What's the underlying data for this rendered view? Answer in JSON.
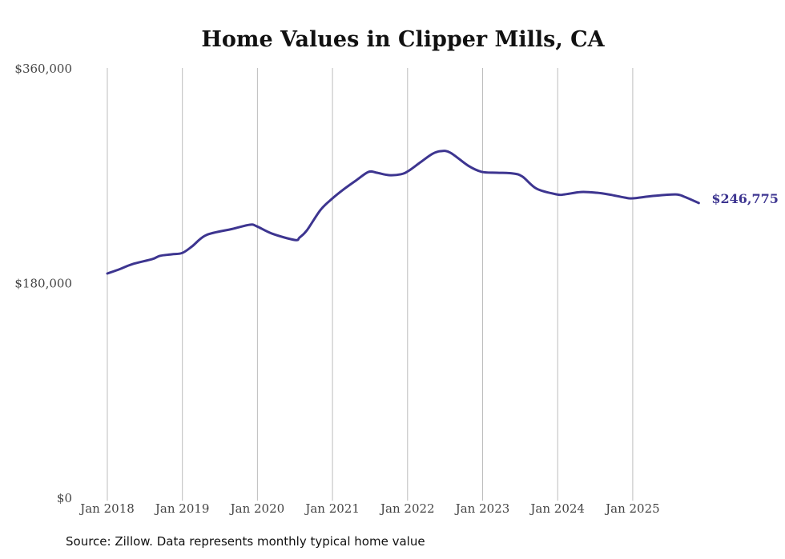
{
  "chart_data": {
    "type": "line",
    "title": "Home Values in Clipper Mills, CA",
    "xlabel": "",
    "ylabel": "",
    "ylim": [
      0,
      360000
    ],
    "xlim": [
      2018,
      2026
    ],
    "y_ticks": [
      {
        "value": 0,
        "label": "$0"
      },
      {
        "value": 180000,
        "label": "$180,000"
      },
      {
        "value": 360000,
        "label": "$360,000"
      }
    ],
    "x_ticks": [
      {
        "value": 2018,
        "label": "Jan 2018"
      },
      {
        "value": 2019,
        "label": "Jan 2019"
      },
      {
        "value": 2020,
        "label": "Jan 2020"
      },
      {
        "value": 2021,
        "label": "Jan 2021"
      },
      {
        "value": 2022,
        "label": "Jan 2022"
      },
      {
        "value": 2023,
        "label": "Jan 2023"
      },
      {
        "value": 2024,
        "label": "Jan 2024"
      },
      {
        "value": 2025,
        "label": "Jan 2025"
      }
    ],
    "grid": "vertical",
    "series": [
      {
        "name": "Typical home value",
        "color": "#3d3590",
        "end_label": "$246,775",
        "x": [
          2018.0,
          2018.17,
          2018.33,
          2018.6,
          2018.7,
          2018.86,
          2019.0,
          2019.13,
          2019.32,
          2019.66,
          2019.9,
          2019.99,
          2020.2,
          2020.5,
          2020.56,
          2020.66,
          2020.84,
          2021.0,
          2021.16,
          2021.32,
          2021.48,
          2021.59,
          2021.75,
          2021.91,
          2022.01,
          2022.17,
          2022.33,
          2022.44,
          2022.57,
          2022.81,
          2022.99,
          2023.19,
          2023.4,
          2023.53,
          2023.72,
          2023.99,
          2024.09,
          2024.31,
          2024.52,
          2024.68,
          2024.89,
          2025.0,
          2025.27,
          2025.57,
          2025.69,
          2025.88
        ],
        "y": [
          187700,
          191500,
          195500,
          199800,
          202500,
          203800,
          205000,
          210500,
          220000,
          225000,
          228600,
          227300,
          221000,
          215800,
          217800,
          224000,
          241000,
          250700,
          258800,
          266000,
          272900,
          272200,
          270200,
          270900,
          273600,
          280900,
          288000,
          290300,
          289000,
          278000,
          272900,
          272200,
          271600,
          269000,
          258800,
          254000,
          254000,
          256000,
          255400,
          254000,
          251400,
          250700,
          252700,
          254000,
          252000,
          246775
        ]
      }
    ]
  },
  "source": "Source: Zillow. Data represents monthly typical home value"
}
